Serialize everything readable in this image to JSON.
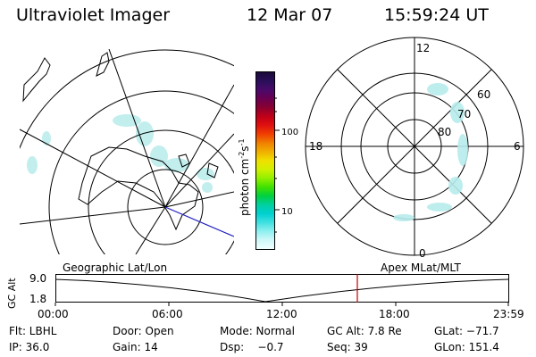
{
  "header": {
    "instrument": "Ultraviolet Imager",
    "date": "12 Mar 07",
    "time": "15:59:24 UT"
  },
  "colorbar": {
    "unit_label": "photon cm",
    "unit_exp1": "-2",
    "unit_s": "s",
    "unit_exp2": "-1",
    "tick_100": "100",
    "tick_10": "10",
    "colors": [
      "#1a0a3a",
      "#2a0f5a",
      "#4a0a6a",
      "#6a0050",
      "#8a0030",
      "#c00018",
      "#e01010",
      "#f04000",
      "#f08000",
      "#f0b000",
      "#f0e000",
      "#d0f000",
      "#90f000",
      "#40e000",
      "#00d040",
      "#00d0a0",
      "#00d0d0",
      "#40e0e0",
      "#90f0f0",
      "#d0f8f8",
      "#f0ffff"
    ]
  },
  "polar": {
    "label_12": "12",
    "label_18": "18",
    "label_6": "6",
    "label_0": "0",
    "label_60": "60",
    "label_70": "70",
    "label_80": "80"
  },
  "strip": {
    "left_title": "Geographic Lat/Lon",
    "right_title": "Apex MLat/MLT",
    "axis_label": "GC Alt",
    "y_top": "9.0",
    "y_bottom": "1.8",
    "x_ticks": [
      "00:00",
      "06:00",
      "12:00",
      "18:00",
      "23:59"
    ],
    "marker_color": "#c00000"
  },
  "footer": {
    "flt": "Flt: LBHL",
    "door": "Door: Open",
    "mode": "Mode: Normal",
    "gc_alt": "GC Alt: 7.8 Re",
    "glat": "GLat: −71.7",
    "ip": "IP: 36.0",
    "gain": "Gain: 14",
    "dsp": "Dsp:    −0.7",
    "seq": "Seq: 39",
    "glon": "GLon: 151.4"
  }
}
